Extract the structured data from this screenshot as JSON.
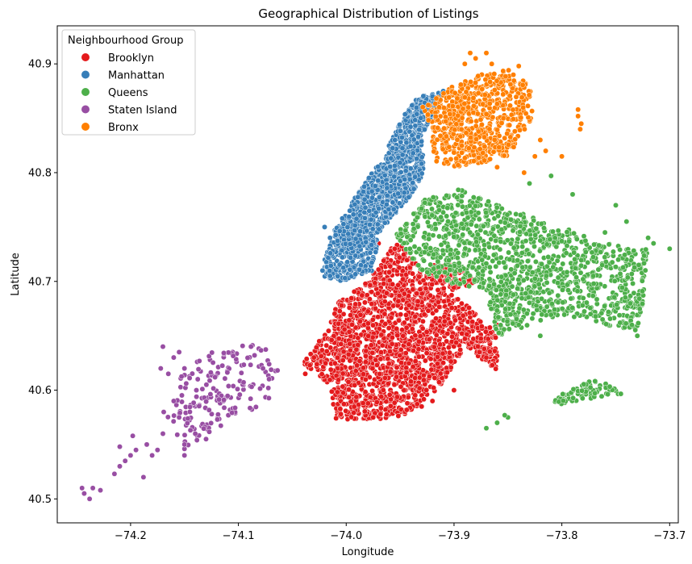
{
  "chart_data": {
    "type": "scatter",
    "title": "Geographical Distribution of Listings",
    "xlabel": "Longitude",
    "ylabel": "Latitude",
    "xlim": [
      -74.268,
      -73.692
    ],
    "ylim": [
      40.478,
      40.935
    ],
    "xticks": [
      -74.2,
      -74.1,
      -74.0,
      -73.9,
      -73.8,
      -73.7
    ],
    "xtick_labels": [
      "−74.2",
      "−74.1",
      "−74.0",
      "−73.9",
      "−73.8",
      "−73.7"
    ],
    "yticks": [
      40.5,
      40.6,
      40.7,
      40.8,
      40.9
    ],
    "ytick_labels": [
      "40.5",
      "40.6",
      "40.7",
      "40.8",
      "40.9"
    ],
    "grid": false,
    "legend": {
      "title": "Neighbourhood Group",
      "placement": "upper-left"
    },
    "series": [
      {
        "name": "Brooklyn",
        "color": "#e41a1c",
        "regions": [
          [
            [
              -73.98,
              40.7
            ],
            [
              -73.953,
              40.738
            ],
            [
              -73.93,
              40.71
            ],
            [
              -73.89,
              40.68
            ],
            [
              -73.862,
              40.654
            ],
            [
              -73.858,
              40.617
            ],
            [
              -73.89,
              40.64
            ],
            [
              -73.915,
              40.6
            ],
            [
              -73.95,
              40.574
            ],
            [
              -73.99,
              40.573
            ],
            [
              -74.01,
              40.573
            ],
            [
              -74.015,
              40.605
            ],
            [
              -74.04,
              40.625
            ],
            [
              -74.02,
              40.65
            ],
            [
              -74.008,
              40.68
            ]
          ],
          [
            [
              -73.93,
              40.712
            ],
            [
              -73.9,
              40.72
            ],
            [
              -73.88,
              40.7
            ],
            [
              -73.9,
              40.69
            ]
          ]
        ],
        "points": [
          [
            -74.038,
            40.615
          ],
          [
            -74.005,
            40.578
          ],
          [
            -73.975,
            40.575
          ],
          [
            -73.93,
            40.585
          ],
          [
            -73.92,
            40.59
          ],
          [
            -73.86,
            40.66
          ],
          [
            -73.87,
            40.63
          ],
          [
            -74.03,
            40.63
          ],
          [
            -74.025,
            40.645
          ],
          [
            -73.97,
            40.735
          ],
          [
            -73.955,
            40.73
          ],
          [
            -73.9,
            40.6
          ]
        ],
        "count": 1900
      },
      {
        "name": "Manhattan",
        "color": "#377eb8",
        "regions": [
          [
            [
              -74.02,
              40.704
            ],
            [
              -74.005,
              40.7
            ],
            [
              -73.975,
              40.71
            ],
            [
              -73.97,
              40.745
            ],
            [
              -73.943,
              40.775
            ],
            [
              -73.928,
              40.798
            ],
            [
              -73.93,
              40.835
            ],
            [
              -73.915,
              40.86
            ],
            [
              -73.91,
              40.875
            ],
            [
              -73.935,
              40.87
            ],
            [
              -73.948,
              40.85
            ],
            [
              -73.965,
              40.815
            ],
            [
              -73.99,
              40.78
            ],
            [
              -74.012,
              40.745
            ],
            [
              -74.02,
              40.72
            ]
          ]
        ],
        "points": [
          [
            -74.015,
            40.705
          ],
          [
            -74.022,
            40.71
          ],
          [
            -73.92,
            40.87
          ],
          [
            -73.91,
            40.875
          ],
          [
            -73.93,
            40.86
          ],
          [
            -74.02,
            40.75
          ],
          [
            -74.015,
            40.74
          ]
        ],
        "count": 1400
      },
      {
        "name": "Queens",
        "color": "#4daf4a",
        "regions": [
          [
            [
              -73.955,
              40.742
            ],
            [
              -73.93,
              40.775
            ],
            [
              -73.895,
              40.785
            ],
            [
              -73.86,
              40.77
            ],
            [
              -73.83,
              40.76
            ],
            [
              -73.8,
              40.75
            ],
            [
              -73.77,
              40.74
            ],
            [
              -73.74,
              40.73
            ],
            [
              -73.72,
              40.73
            ],
            [
              -73.725,
              40.68
            ],
            [
              -73.73,
              40.655
            ],
            [
              -73.76,
              40.66
            ],
            [
              -73.8,
              40.67
            ],
            [
              -73.83,
              40.66
            ],
            [
              -73.85,
              40.65
            ],
            [
              -73.86,
              40.65
            ],
            [
              -73.87,
              40.69
            ],
            [
              -73.91,
              40.7
            ],
            [
              -73.93,
              40.71
            ]
          ],
          [
            [
              -73.815,
              40.585
            ],
            [
              -73.8,
              40.597
            ],
            [
              -73.78,
              40.61
            ],
            [
              -73.76,
              40.607
            ],
            [
              -73.74,
              40.597
            ],
            [
              -73.77,
              40.593
            ],
            [
              -73.8,
              40.587
            ]
          ]
        ],
        "points": [
          [
            -73.83,
            40.79
          ],
          [
            -73.81,
            40.797
          ],
          [
            -73.79,
            40.78
          ],
          [
            -73.75,
            40.77
          ],
          [
            -73.74,
            40.755
          ],
          [
            -73.72,
            40.74
          ],
          [
            -73.715,
            40.735
          ],
          [
            -73.76,
            40.745
          ],
          [
            -73.85,
            40.575
          ],
          [
            -73.853,
            40.577
          ],
          [
            -73.86,
            40.57
          ],
          [
            -73.87,
            40.565
          ],
          [
            -73.84,
            40.66
          ],
          [
            -73.82,
            40.65
          ],
          [
            -73.735,
            40.66
          ],
          [
            -73.73,
            40.65
          ],
          [
            -73.7,
            40.73
          ]
        ],
        "count": 1350
      },
      {
        "name": "Staten Island",
        "color": "#984ea3",
        "regions": [
          [
            [
              -74.075,
              40.645
            ],
            [
              -74.1,
              40.64
            ],
            [
              -74.12,
              40.635
            ],
            [
              -74.14,
              40.635
            ],
            [
              -74.16,
              40.6
            ],
            [
              -74.17,
              40.58
            ],
            [
              -74.15,
              40.545
            ],
            [
              -74.12,
              40.56
            ],
            [
              -74.09,
              40.58
            ],
            [
              -74.065,
              40.595
            ],
            [
              -74.06,
              40.615
            ],
            [
              -74.07,
              40.63
            ]
          ]
        ],
        "points": [
          [
            -74.245,
            40.51
          ],
          [
            -74.243,
            40.505
          ],
          [
            -74.238,
            40.5
          ],
          [
            -74.235,
            40.51
          ],
          [
            -74.228,
            40.508
          ],
          [
            -74.215,
            40.523
          ],
          [
            -74.21,
            40.53
          ],
          [
            -74.205,
            40.535
          ],
          [
            -74.2,
            40.54
          ],
          [
            -74.195,
            40.545
          ],
          [
            -74.188,
            40.52
          ],
          [
            -74.185,
            40.55
          ],
          [
            -74.18,
            40.54
          ],
          [
            -74.175,
            40.545
          ],
          [
            -74.17,
            40.56
          ],
          [
            -74.172,
            40.62
          ],
          [
            -74.17,
            40.64
          ],
          [
            -74.165,
            40.615
          ],
          [
            -74.16,
            40.63
          ],
          [
            -74.155,
            40.635
          ],
          [
            -74.15,
            40.62
          ],
          [
            -74.16,
            40.59
          ],
          [
            -74.155,
            40.575
          ],
          [
            -74.145,
            40.58
          ],
          [
            -74.14,
            40.56
          ],
          [
            -74.13,
            40.555
          ],
          [
            -74.198,
            40.558
          ],
          [
            -74.21,
            40.548
          ],
          [
            -74.15,
            40.55
          ],
          [
            -74.15,
            40.54
          ]
        ],
        "count": 180
      },
      {
        "name": "Bronx",
        "color": "#ff7f00",
        "regions": [
          [
            [
              -73.92,
              40.84
            ],
            [
              -73.93,
              40.86
            ],
            [
              -73.9,
              40.88
            ],
            [
              -73.87,
              40.892
            ],
            [
              -73.85,
              40.895
            ],
            [
              -73.83,
              40.88
            ],
            [
              -73.825,
              40.855
            ],
            [
              -73.84,
              40.83
            ],
            [
              -73.85,
              40.815
            ],
            [
              -73.87,
              40.81
            ],
            [
              -73.9,
              40.805
            ],
            [
              -73.92,
              40.81
            ]
          ]
        ],
        "points": [
          [
            -73.885,
            40.91
          ],
          [
            -73.88,
            40.905
          ],
          [
            -73.89,
            40.9
          ],
          [
            -73.87,
            40.91
          ],
          [
            -73.865,
            40.9
          ],
          [
            -73.84,
            40.898
          ],
          [
            -73.845,
            40.89
          ],
          [
            -73.82,
            40.83
          ],
          [
            -73.815,
            40.82
          ],
          [
            -73.8,
            40.815
          ],
          [
            -73.785,
            40.858
          ],
          [
            -73.785,
            40.852
          ],
          [
            -73.782,
            40.845
          ],
          [
            -73.783,
            40.84
          ],
          [
            -73.825,
            40.815
          ],
          [
            -73.86,
            40.805
          ],
          [
            -73.835,
            40.8
          ]
        ],
        "count": 650
      }
    ]
  }
}
